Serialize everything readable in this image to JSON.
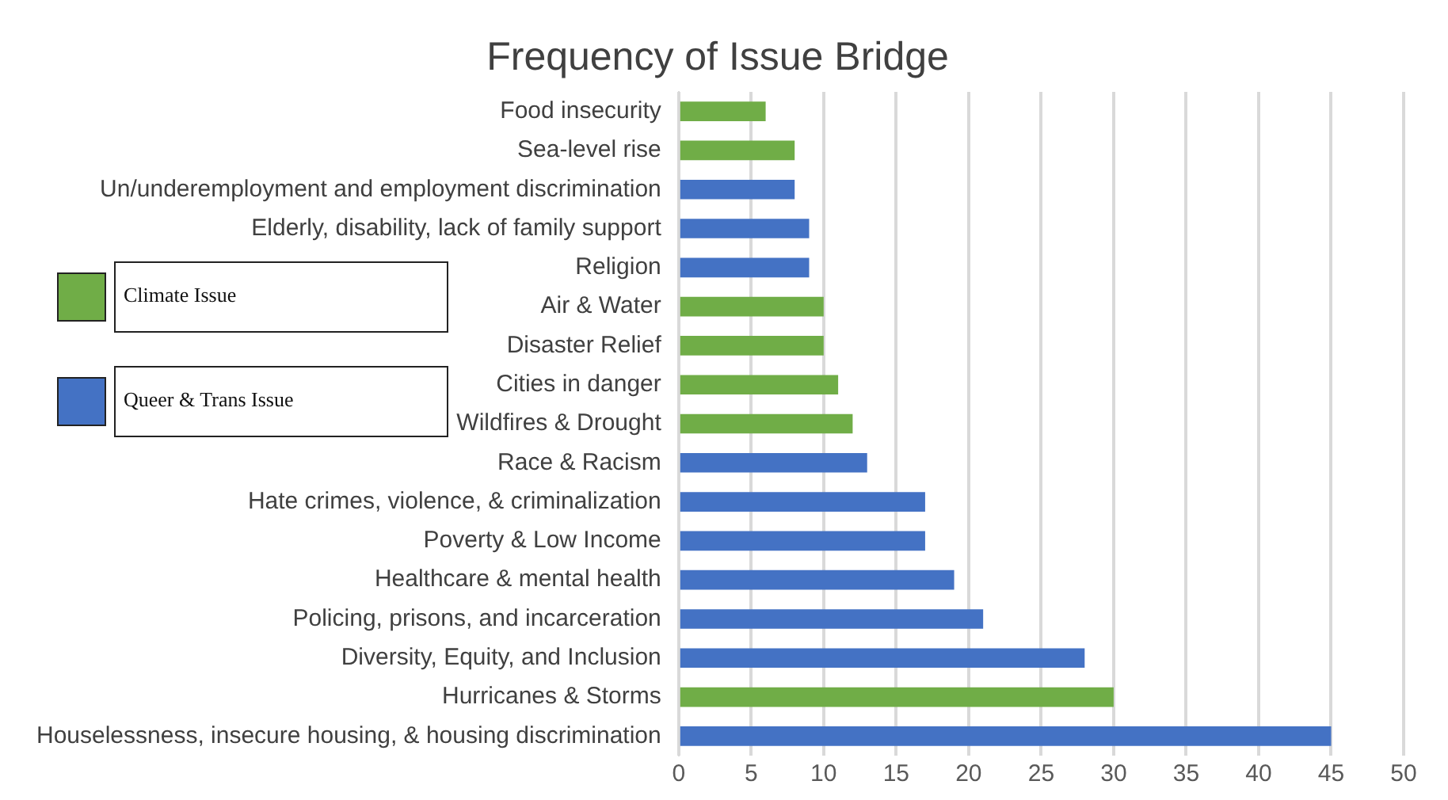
{
  "chart_data": {
    "type": "bar",
    "orientation": "horizontal",
    "title": "Frequency of Issue Bridge",
    "categories": [
      "Food insecurity",
      "Sea-level rise",
      "Un/underemployment and employment discrimination",
      "Elderly, disability, lack of family support",
      "Religion",
      "Air & Water",
      "Disaster Relief",
      "Cities in danger",
      "Wildfires & Drought",
      "Race & Racism",
      "Hate crimes, violence, & criminalization",
      "Poverty & Low Income",
      "Healthcare & mental health",
      "Policing, prisons, and incarceration",
      "Diversity, Equity, and Inclusion",
      "Hurricanes & Storms",
      "Houselessness, insecure housing, & housing discrimination"
    ],
    "series": [
      {
        "name": "Climate Issue",
        "color": "#70ad47",
        "values": [
          6,
          8,
          null,
          null,
          null,
          10,
          10,
          11,
          12,
          null,
          null,
          null,
          null,
          null,
          null,
          30,
          null
        ]
      },
      {
        "name": "Queer & Trans Issue",
        "color": "#4472c4",
        "values": [
          null,
          null,
          8,
          9,
          9,
          null,
          null,
          null,
          null,
          13,
          17,
          17,
          19,
          21,
          28,
          null,
          45
        ]
      }
    ],
    "xlim": [
      0,
      50
    ],
    "xticks": [
      0,
      5,
      10,
      15,
      20,
      25,
      30,
      35,
      40,
      45,
      50
    ],
    "grid": "x",
    "legend": "left"
  }
}
